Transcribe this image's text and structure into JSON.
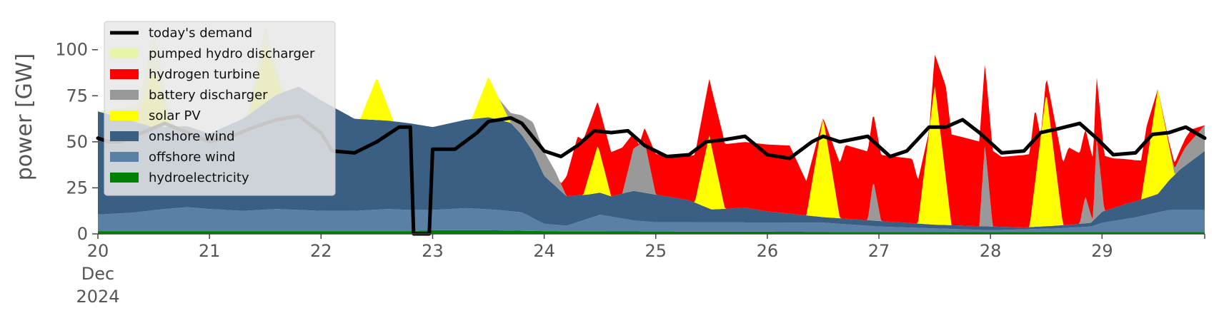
{
  "chart_data": {
    "type": "area",
    "ylabel": "power [GW]",
    "xlabel": "",
    "ylim": [
      0,
      115
    ],
    "xlim": [
      20,
      29.92
    ],
    "grid": false,
    "legend_placement": "upper-left",
    "x_ticks": [
      {
        "x": 20,
        "lines": [
          "20",
          "Dec",
          "2024"
        ]
      },
      {
        "x": 21,
        "lines": [
          "21"
        ]
      },
      {
        "x": 22,
        "lines": [
          "22"
        ]
      },
      {
        "x": 23,
        "lines": [
          "23"
        ]
      },
      {
        "x": 24,
        "lines": [
          "24"
        ]
      },
      {
        "x": 25,
        "lines": [
          "25"
        ]
      },
      {
        "x": 26,
        "lines": [
          "26"
        ]
      },
      {
        "x": 27,
        "lines": [
          "27"
        ]
      },
      {
        "x": 28,
        "lines": [
          "28"
        ]
      },
      {
        "x": 29,
        "lines": [
          "29"
        ]
      }
    ],
    "y_ticks": [
      0,
      25,
      50,
      75,
      100
    ],
    "legend": [
      {
        "label": "today's demand",
        "kind": "line",
        "color": "#000000"
      },
      {
        "label": "pumped hydro discharger",
        "kind": "patch",
        "color": "#e6f5a8"
      },
      {
        "label": "hydrogen turbine",
        "kind": "patch",
        "color": "#ff0000"
      },
      {
        "label": "battery discharger",
        "kind": "patch",
        "color": "#999999"
      },
      {
        "label": "solar PV",
        "kind": "patch",
        "color": "#ffff00"
      },
      {
        "label": "onshore wind",
        "kind": "patch",
        "color": "#3a5f83"
      },
      {
        "label": "offshore wind",
        "kind": "patch",
        "color": "#5a80a6"
      },
      {
        "label": "hydroelectricity",
        "kind": "patch",
        "color": "#008000"
      }
    ],
    "stack_order": [
      "hydroelectricity",
      "offshore wind",
      "onshore wind",
      "solar PV",
      "battery discharger",
      "hydrogen turbine",
      "pumped hydro discharger"
    ],
    "series": [
      {
        "name": "hydroelectricity",
        "color": "#008000",
        "points": [
          [
            20,
            1.5
          ],
          [
            22.8,
            1.5
          ],
          [
            23,
            2
          ],
          [
            23.5,
            2
          ],
          [
            24,
            1.5
          ],
          [
            25,
            1.3
          ],
          [
            26,
            1.2
          ],
          [
            27,
            1
          ],
          [
            28,
            1
          ],
          [
            29,
            1
          ],
          [
            29.92,
            1
          ]
        ]
      },
      {
        "name": "offshore wind",
        "color": "#5a80a6",
        "points": [
          [
            20,
            9
          ],
          [
            20.3,
            10
          ],
          [
            20.6,
            12
          ],
          [
            20.8,
            13
          ],
          [
            21,
            12
          ],
          [
            21.3,
            11
          ],
          [
            21.6,
            12
          ],
          [
            22,
            11
          ],
          [
            22.3,
            11
          ],
          [
            22.6,
            12
          ],
          [
            23,
            11
          ],
          [
            23.3,
            12
          ],
          [
            23.6,
            11
          ],
          [
            23.8,
            10
          ],
          [
            24,
            4
          ],
          [
            24.2,
            3
          ],
          [
            24.5,
            9
          ],
          [
            24.8,
            6
          ],
          [
            25,
            5
          ],
          [
            25.5,
            5
          ],
          [
            26,
            5
          ],
          [
            26.5,
            5
          ],
          [
            27,
            3
          ],
          [
            27.5,
            2
          ],
          [
            28,
            1
          ],
          [
            28.3,
            1.5
          ],
          [
            28.6,
            2
          ],
          [
            28.9,
            3
          ],
          [
            29,
            5
          ],
          [
            29.3,
            8
          ],
          [
            29.6,
            12
          ],
          [
            29.92,
            12
          ]
        ]
      },
      {
        "name": "onshore wind",
        "color": "#3a5f83",
        "points": [
          [
            20,
            56
          ],
          [
            20.3,
            50
          ],
          [
            20.5,
            45
          ],
          [
            20.8,
            44
          ],
          [
            21,
            41
          ],
          [
            21.3,
            50
          ],
          [
            21.6,
            62
          ],
          [
            21.8,
            67
          ],
          [
            22,
            60
          ],
          [
            22.3,
            50
          ],
          [
            22.6,
            48
          ],
          [
            22.8,
            47
          ],
          [
            23,
            45
          ],
          [
            23.3,
            48
          ],
          [
            23.5,
            50
          ],
          [
            23.7,
            48
          ],
          [
            23.9,
            36
          ],
          [
            24,
            26
          ],
          [
            24.2,
            16
          ],
          [
            24.4,
            13
          ],
          [
            24.6,
            11
          ],
          [
            24.8,
            16
          ],
          [
            25,
            15
          ],
          [
            25.3,
            12
          ],
          [
            25.5,
            7
          ],
          [
            25.8,
            8
          ],
          [
            26,
            6
          ],
          [
            26.5,
            3
          ],
          [
            27,
            3
          ],
          [
            27.5,
            2
          ],
          [
            28,
            2
          ],
          [
            28.3,
            1
          ],
          [
            28.6,
            1.5
          ],
          [
            28.9,
            2
          ],
          [
            29,
            6
          ],
          [
            29.2,
            8
          ],
          [
            29.5,
            10
          ],
          [
            29.7,
            22
          ],
          [
            29.92,
            32
          ]
        ]
      },
      {
        "name": "solar PV",
        "color": "#ffff00",
        "points": [
          [
            20,
            0
          ],
          [
            20.35,
            0
          ],
          [
            20.5,
            33
          ],
          [
            20.65,
            0
          ],
          [
            21.35,
            0
          ],
          [
            21.5,
            32
          ],
          [
            21.65,
            0
          ],
          [
            22.35,
            0
          ],
          [
            22.5,
            23
          ],
          [
            22.65,
            0
          ],
          [
            23.35,
            0
          ],
          [
            23.5,
            22
          ],
          [
            23.7,
            0
          ],
          [
            24.35,
            0
          ],
          [
            24.48,
            26
          ],
          [
            24.6,
            0
          ],
          [
            25.35,
            0
          ],
          [
            25.48,
            40
          ],
          [
            25.62,
            0
          ],
          [
            26.35,
            0
          ],
          [
            26.5,
            54
          ],
          [
            26.65,
            0
          ],
          [
            27.35,
            0
          ],
          [
            27.5,
            76
          ],
          [
            27.65,
            0
          ],
          [
            28.35,
            0
          ],
          [
            28.5,
            73
          ],
          [
            28.65,
            0
          ],
          [
            29.35,
            0
          ],
          [
            29.5,
            57
          ],
          [
            29.65,
            0
          ],
          [
            29.92,
            0
          ]
        ]
      },
      {
        "name": "battery discharger",
        "color": "#999999",
        "points": [
          [
            20,
            0
          ],
          [
            23.6,
            0
          ],
          [
            23.75,
            8
          ],
          [
            23.9,
            16
          ],
          [
            24,
            13
          ],
          [
            24.1,
            8
          ],
          [
            24.2,
            0
          ],
          [
            24.7,
            0
          ],
          [
            24.8,
            23
          ],
          [
            24.9,
            28
          ],
          [
            25,
            0
          ],
          [
            26.9,
            0
          ],
          [
            26.95,
            22
          ],
          [
            27.02,
            0
          ],
          [
            27.9,
            0
          ],
          [
            27.95,
            45
          ],
          [
            28.02,
            0
          ],
          [
            28.8,
            0
          ],
          [
            28.85,
            15
          ],
          [
            28.92,
            0
          ],
          [
            28.95,
            45
          ],
          [
            29.02,
            0
          ],
          [
            29.6,
            0
          ],
          [
            29.75,
            10
          ],
          [
            29.92,
            14
          ]
        ]
      },
      {
        "name": "hydrogen turbine",
        "color": "#ff0000",
        "points": [
          [
            20,
            0
          ],
          [
            24.15,
            0
          ],
          [
            24.3,
            32
          ],
          [
            24.5,
            23
          ],
          [
            24.7,
            25
          ],
          [
            24.85,
            0
          ],
          [
            25.0,
            22
          ],
          [
            25.3,
            24
          ],
          [
            25.6,
            35
          ],
          [
            25.9,
            36
          ],
          [
            26.2,
            37
          ],
          [
            26.5,
            0
          ],
          [
            26.7,
            40
          ],
          [
            27,
            36
          ],
          [
            27.3,
            35
          ],
          [
            27.45,
            0
          ],
          [
            27.6,
            50
          ],
          [
            27.9,
            46
          ],
          [
            28.1,
            38
          ],
          [
            28.4,
            40
          ],
          [
            28.45,
            0
          ],
          [
            28.7,
            42
          ],
          [
            29.1,
            27
          ],
          [
            29.4,
            20
          ],
          [
            29.5,
            0
          ],
          [
            29.8,
            6
          ],
          [
            29.92,
            0
          ]
        ]
      },
      {
        "name": "pumped hydro discharger",
        "color": "#e6f5a8",
        "points": [
          [
            20,
            0
          ],
          [
            20.4,
            10
          ],
          [
            20.5,
            20
          ],
          [
            20.6,
            10
          ],
          [
            20.7,
            0
          ],
          [
            21.3,
            0
          ],
          [
            21.5,
            10
          ],
          [
            21.7,
            0
          ],
          [
            29.92,
            0
          ]
        ]
      },
      {
        "name": "today's demand",
        "color": "#000000",
        "points": [
          [
            20,
            52
          ],
          [
            20.1,
            50
          ],
          [
            20.2,
            50
          ],
          [
            20.4,
            55
          ],
          [
            20.6,
            60
          ],
          [
            20.8,
            55
          ],
          [
            21.0,
            50
          ],
          [
            21.2,
            53
          ],
          [
            21.4,
            58
          ],
          [
            21.6,
            62
          ],
          [
            21.8,
            64
          ],
          [
            22.0,
            55
          ],
          [
            22.1,
            45
          ],
          [
            22.3,
            44
          ],
          [
            22.5,
            50
          ],
          [
            22.7,
            58
          ],
          [
            22.8,
            58
          ],
          [
            22.83,
            0
          ],
          [
            22.97,
            0
          ],
          [
            23.0,
            46
          ],
          [
            23.2,
            46
          ],
          [
            23.4,
            55
          ],
          [
            23.5,
            61
          ],
          [
            23.7,
            63
          ],
          [
            23.8,
            60
          ],
          [
            24.0,
            45
          ],
          [
            24.15,
            42
          ],
          [
            24.3,
            48
          ],
          [
            24.45,
            56
          ],
          [
            24.6,
            55
          ],
          [
            24.75,
            56
          ],
          [
            24.9,
            48
          ],
          [
            25.1,
            42
          ],
          [
            25.3,
            43
          ],
          [
            25.45,
            50
          ],
          [
            25.6,
            51
          ],
          [
            25.8,
            53
          ],
          [
            26.0,
            43
          ],
          [
            26.2,
            41
          ],
          [
            26.4,
            50
          ],
          [
            26.5,
            53
          ],
          [
            26.65,
            50
          ],
          [
            26.9,
            53
          ],
          [
            27.1,
            42
          ],
          [
            27.25,
            45
          ],
          [
            27.45,
            58
          ],
          [
            27.6,
            58
          ],
          [
            27.75,
            62
          ],
          [
            27.9,
            55
          ],
          [
            28.1,
            44
          ],
          [
            28.3,
            45
          ],
          [
            28.45,
            55
          ],
          [
            28.6,
            57
          ],
          [
            28.8,
            60
          ],
          [
            28.95,
            52
          ],
          [
            29.1,
            43
          ],
          [
            29.3,
            44
          ],
          [
            29.45,
            54
          ],
          [
            29.6,
            55
          ],
          [
            29.75,
            58
          ],
          [
            29.92,
            52
          ]
        ]
      }
    ]
  }
}
